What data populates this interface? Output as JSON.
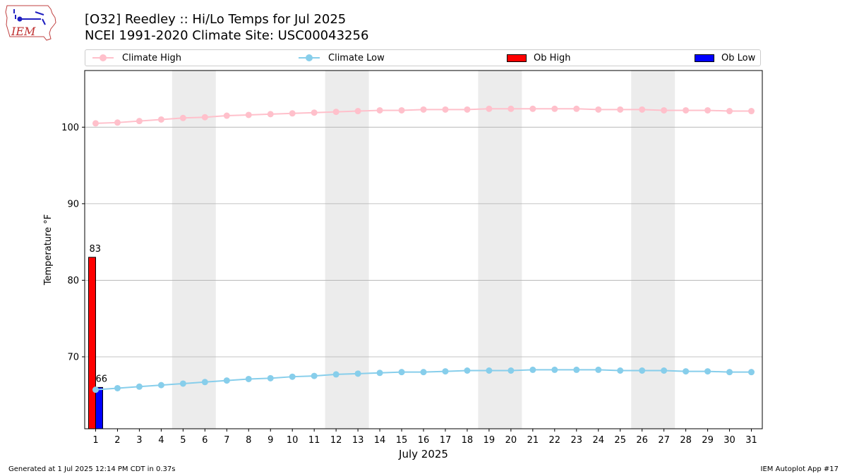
{
  "logo": {
    "text": "IEM",
    "icon": "iowa-state-outline-weather-station-icon"
  },
  "title": {
    "line1": "[O32] Reedley :: Hi/Lo Temps for Jul 2025",
    "line2": "NCEI 1991-2020 Climate Site: USC00043256"
  },
  "legend": [
    {
      "label": "Climate High",
      "kind": "line",
      "color": "#ffc0cb"
    },
    {
      "label": "Climate Low",
      "kind": "line",
      "color": "#87ceeb"
    },
    {
      "label": "Ob High",
      "kind": "box",
      "color": "#ff0000"
    },
    {
      "label": "Ob Low",
      "kind": "box",
      "color": "#0000ff"
    }
  ],
  "chart_data": {
    "type": "bar",
    "title": "[O32] Reedley :: Hi/Lo Temps for Jul 2025",
    "xlabel": "July 2025",
    "ylabel": "Temperature °F",
    "x": [
      1,
      2,
      3,
      4,
      5,
      6,
      7,
      8,
      9,
      10,
      11,
      12,
      13,
      14,
      15,
      16,
      17,
      18,
      19,
      20,
      21,
      22,
      23,
      24,
      25,
      26,
      27,
      28,
      29,
      30,
      31
    ],
    "xlim": [
      0.5,
      31.5
    ],
    "ylim": [
      60.6,
      107.4
    ],
    "yticks": [
      70,
      80,
      90,
      100
    ],
    "grid": "horizontal",
    "weekend_shading": [
      [
        4.5,
        6.5
      ],
      [
        11.5,
        13.5
      ],
      [
        18.5,
        20.5
      ],
      [
        25.5,
        27.5
      ]
    ],
    "series": [
      {
        "name": "Climate High",
        "type": "line",
        "color": "#ffc0cb",
        "values": [
          100.5,
          100.6,
          100.8,
          101.0,
          101.2,
          101.3,
          101.5,
          101.6,
          101.7,
          101.8,
          101.9,
          102.0,
          102.1,
          102.2,
          102.2,
          102.3,
          102.3,
          102.3,
          102.4,
          102.4,
          102.4,
          102.4,
          102.4,
          102.3,
          102.3,
          102.3,
          102.2,
          102.2,
          102.2,
          102.1,
          102.1
        ]
      },
      {
        "name": "Climate Low",
        "type": "line",
        "color": "#87ceeb",
        "values": [
          65.7,
          65.9,
          66.1,
          66.3,
          66.5,
          66.7,
          66.9,
          67.1,
          67.2,
          67.4,
          67.5,
          67.7,
          67.8,
          67.9,
          68.0,
          68.0,
          68.1,
          68.2,
          68.2,
          68.2,
          68.3,
          68.3,
          68.3,
          68.3,
          68.2,
          68.2,
          68.2,
          68.1,
          68.1,
          68.0,
          68.0
        ]
      },
      {
        "name": "Ob High",
        "type": "bar",
        "color": "#ff0000",
        "points": [
          {
            "x": 1,
            "value": 83,
            "label": "83"
          }
        ]
      },
      {
        "name": "Ob Low",
        "type": "bar",
        "color": "#0000ff",
        "points": [
          {
            "x": 1,
            "value": 66,
            "label": "66"
          }
        ]
      }
    ]
  },
  "footer": {
    "left": "Generated at 1 Jul 2025 12:14 PM CDT in 0.37s",
    "right": "IEM Autoplot App #17"
  }
}
